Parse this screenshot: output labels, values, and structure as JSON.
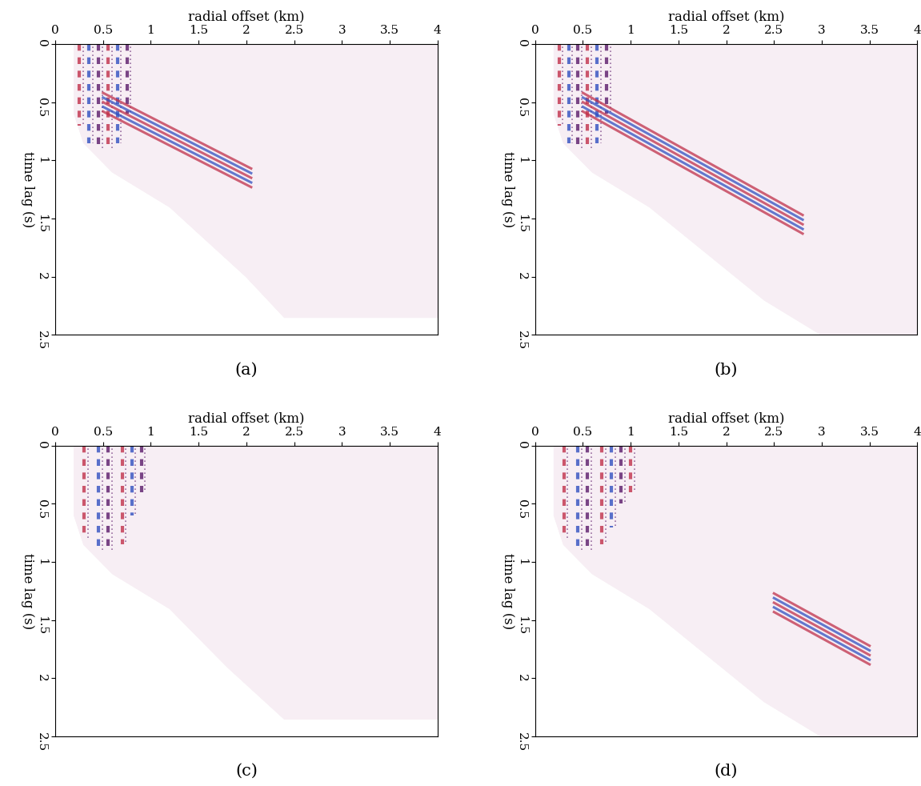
{
  "chart_data": [
    {
      "type": "seismic_image",
      "label": "(a)",
      "x_label": "radial offset (km)",
      "y_label": "time lag (s)",
      "xlim": [
        0,
        4
      ],
      "xticks": [
        0,
        0.5,
        1,
        1.5,
        2,
        2.5,
        3,
        3.5,
        4
      ],
      "ylim": [
        2.5,
        0
      ],
      "yticks": [
        0,
        0.5,
        1,
        1.5,
        2,
        2.5
      ],
      "energy_boundary": {
        "x": [
          0.2,
          0.2,
          0.3,
          0.6,
          1.2,
          1.6,
          2.0,
          2.4
        ],
        "t": [
          0,
          0.6,
          0.85,
          1.1,
          1.4,
          1.7,
          2.0,
          2.35
        ]
      },
      "strong_traces": {
        "x": [
          0.25,
          0.35,
          0.45,
          0.55,
          0.65,
          0.75
        ],
        "t_end": [
          0.7,
          0.85,
          0.9,
          0.9,
          0.85,
          0.6
        ]
      },
      "events": [
        {
          "x": [
            0.5,
            2.05
          ],
          "t": [
            0.5,
            1.15
          ]
        }
      ]
    },
    {
      "type": "seismic_image",
      "label": "(b)",
      "x_label": "radial offset (km)",
      "y_label": "time lag (s)",
      "xlim": [
        0,
        4
      ],
      "xticks": [
        0,
        0.5,
        1,
        1.5,
        2,
        2.5,
        3,
        3.5,
        4
      ],
      "ylim": [
        2.5,
        0
      ],
      "yticks": [
        0,
        0.5,
        1,
        1.5,
        2,
        2.5
      ],
      "energy_boundary": {
        "x": [
          0.2,
          0.2,
          0.3,
          0.6,
          1.2,
          1.8,
          2.4,
          3.0
        ],
        "t": [
          0,
          0.6,
          0.85,
          1.1,
          1.4,
          1.8,
          2.2,
          2.5
        ]
      },
      "strong_traces": {
        "x": [
          0.25,
          0.35,
          0.45,
          0.55,
          0.65,
          0.75
        ],
        "t_end": [
          0.7,
          0.85,
          0.9,
          0.9,
          0.85,
          0.6
        ]
      },
      "events": [
        {
          "x": [
            0.5,
            2.8
          ],
          "t": [
            0.5,
            1.55
          ]
        }
      ]
    },
    {
      "type": "seismic_image",
      "label": "(c)",
      "x_label": "radial offset (km)",
      "y_label": "time lag (s)",
      "xlim": [
        0,
        4
      ],
      "xticks": [
        0,
        0.5,
        1,
        1.5,
        2,
        2.5,
        3,
        3.5,
        4
      ],
      "ylim": [
        2.5,
        0
      ],
      "yticks": [
        0,
        0.5,
        1,
        1.5,
        2,
        2.5
      ],
      "energy_boundary": {
        "x": [
          0.2,
          0.2,
          0.3,
          0.6,
          1.2,
          1.8,
          2.4
        ],
        "t": [
          0,
          0.6,
          0.85,
          1.1,
          1.4,
          1.9,
          2.35
        ]
      },
      "strong_traces": {
        "x": [
          0.3,
          0.45,
          0.55,
          0.7,
          0.8,
          0.9
        ],
        "t_end": [
          0.8,
          0.9,
          0.9,
          0.85,
          0.6,
          0.4
        ]
      },
      "events": []
    },
    {
      "type": "seismic_image",
      "label": "(d)",
      "x_label": "radial offset (km)",
      "y_label": "time lag (s)",
      "xlim": [
        0,
        4
      ],
      "xticks": [
        0,
        0.5,
        1,
        1.5,
        2,
        2.5,
        3,
        3.5,
        4
      ],
      "ylim": [
        2.5,
        0
      ],
      "yticks": [
        0,
        0.5,
        1,
        1.5,
        2,
        2.5
      ],
      "energy_boundary": {
        "x": [
          0.2,
          0.2,
          0.3,
          0.6,
          1.2,
          1.8,
          2.4,
          3.0
        ],
        "t": [
          0,
          0.6,
          0.85,
          1.1,
          1.4,
          1.8,
          2.2,
          2.5
        ]
      },
      "strong_traces": {
        "x": [
          0.3,
          0.45,
          0.55,
          0.7,
          0.8,
          0.9,
          1.0
        ],
        "t_end": [
          0.8,
          0.9,
          0.9,
          0.85,
          0.7,
          0.5,
          0.4
        ]
      },
      "events": [
        {
          "x": [
            2.5,
            3.5
          ],
          "t": [
            1.35,
            1.8
          ]
        }
      ]
    }
  ]
}
